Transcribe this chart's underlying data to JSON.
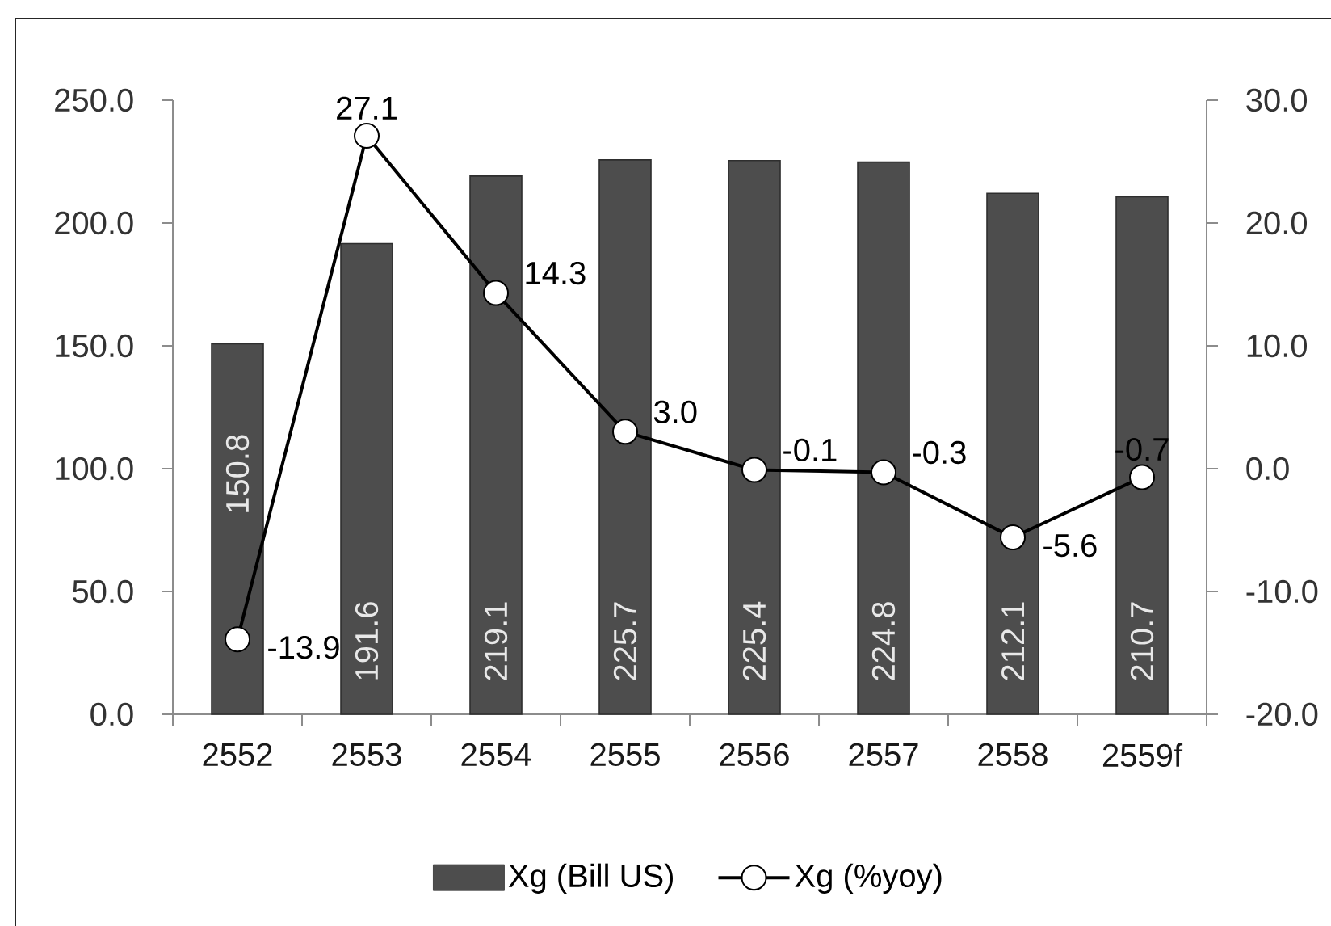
{
  "chart_data": {
    "type": "bar",
    "categories": [
      "2552",
      "2553",
      "2554",
      "2555",
      "2556",
      "2557",
      "2558",
      "2559f"
    ],
    "series": [
      {
        "name": "Xg (Bill US)",
        "color": "#4d4d4d",
        "values": [
          150.8,
          191.6,
          219.1,
          225.7,
          225.4,
          224.8,
          212.1,
          210.7
        ],
        "value_labels": [
          "150.8",
          "191.6",
          "219.1",
          "225.7",
          "225.4",
          "224.8",
          "212.1",
          "210.7"
        ]
      },
      {
        "name": "Xg (%yoy)",
        "type": "line",
        "axis": "y2",
        "color": "#000000",
        "marker": "circle",
        "values": [
          -13.9,
          27.1,
          14.3,
          3.0,
          -0.1,
          -0.3,
          -5.6,
          -0.7
        ],
        "value_labels": [
          "-13.9",
          "27.1",
          "14.3",
          "3.0",
          "-0.1",
          "-0.3",
          "-5.6",
          "-0.7"
        ]
      }
    ],
    "ylim": [
      0,
      250
    ],
    "yticks": [
      {
        "value": 0,
        "label": "0.0"
      },
      {
        "value": 50,
        "label": "50.0"
      },
      {
        "value": 100,
        "label": "100.0"
      },
      {
        "value": 150,
        "label": "150.0"
      },
      {
        "value": 200,
        "label": "200.0"
      },
      {
        "value": 250,
        "label": "250.0"
      }
    ],
    "y2lim": [
      -20,
      30
    ],
    "y2ticks": [
      {
        "value": -20,
        "label": "-20.0"
      },
      {
        "value": -10,
        "label": "-10.0"
      },
      {
        "value": 0,
        "label": "0.0"
      },
      {
        "value": 10,
        "label": "10.0"
      },
      {
        "value": 20,
        "label": "20.0"
      },
      {
        "value": 30,
        "label": "30.0"
      }
    ],
    "legend": "bottom"
  }
}
